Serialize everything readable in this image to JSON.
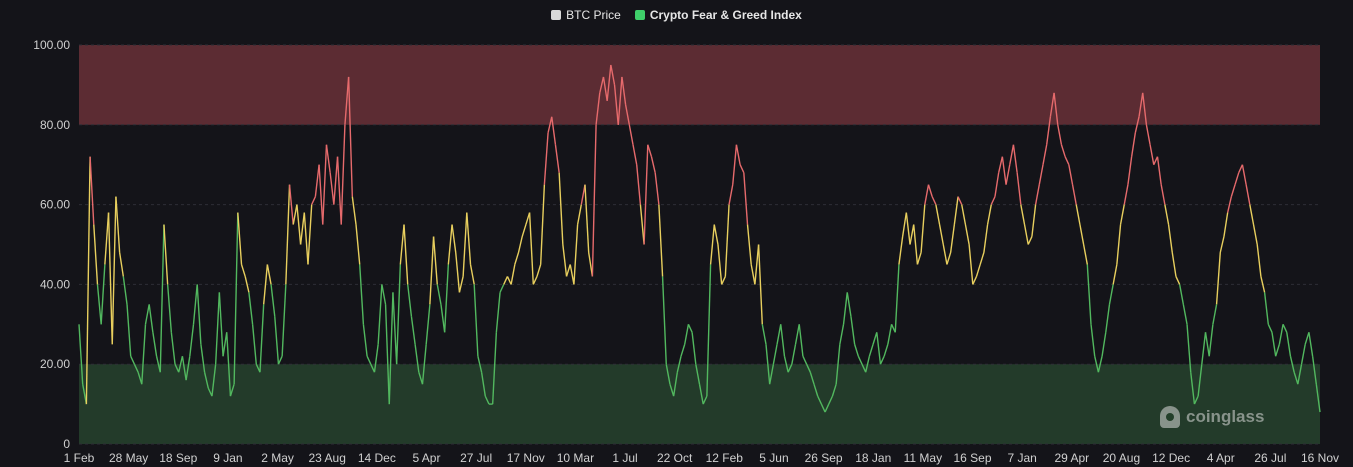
{
  "legend": {
    "btc_label": "BTC Price",
    "fng_label": "Crypto Fear & Greed Index",
    "btc_color": "#d9d9d9",
    "fng_color": "#3fcf6a"
  },
  "watermark": {
    "text": "coinglass"
  },
  "colors": {
    "background": "#141419",
    "extreme_greed_zone": "#5c2c33",
    "extreme_fear_zone": "#233b2a",
    "line_red": "#e66a6c",
    "line_yellow": "#e8cf5e",
    "line_green": "#52b85f"
  },
  "chart_data": {
    "type": "line",
    "title": "",
    "xlabel": "",
    "ylabel": "",
    "ylim": [
      0,
      100
    ],
    "y_ticks": [
      "0",
      "20.00",
      "40.00",
      "60.00",
      "80.00",
      "100.00"
    ],
    "x_ticks": [
      "1 Feb",
      "28 May",
      "18 Sep",
      "9 Jan",
      "2 May",
      "23 Aug",
      "14 Dec",
      "5 Apr",
      "27 Jul",
      "17 Nov",
      "10 Mar",
      "1 Jul",
      "22 Oct",
      "12 Feb",
      "5 Jun",
      "26 Sep",
      "18 Jan",
      "11 May",
      "16 Sep",
      "7 Jan",
      "29 Apr",
      "20 Aug",
      "12 Dec",
      "4 Apr",
      "26 Jul",
      "16 Nov"
    ],
    "zones": [
      {
        "from": 80,
        "to": 100,
        "label": "extreme greed"
      },
      {
        "from": 0,
        "to": 20,
        "label": "extreme fear"
      }
    ],
    "series": [
      {
        "name": "Crypto Fear & Greed Index",
        "values": [
          30,
          15,
          10,
          72,
          55,
          40,
          30,
          45,
          58,
          25,
          62,
          48,
          42,
          35,
          22,
          20,
          18,
          15,
          30,
          35,
          28,
          22,
          18,
          55,
          40,
          28,
          20,
          18,
          22,
          16,
          22,
          30,
          40,
          25,
          18,
          14,
          12,
          20,
          38,
          22,
          28,
          12,
          15,
          58,
          45,
          42,
          38,
          30,
          20,
          18,
          35,
          45,
          40,
          32,
          20,
          22,
          40,
          65,
          55,
          60,
          50,
          58,
          45,
          60,
          62,
          70,
          55,
          75,
          68,
          60,
          72,
          55,
          80,
          92,
          62,
          55,
          45,
          30,
          22,
          20,
          18,
          25,
          40,
          35,
          10,
          38,
          20,
          45,
          55,
          40,
          32,
          25,
          18,
          15,
          25,
          35,
          52,
          40,
          35,
          28,
          45,
          55,
          48,
          38,
          42,
          58,
          45,
          40,
          22,
          18,
          12,
          10,
          10,
          28,
          38,
          40,
          42,
          40,
          45,
          48,
          52,
          55,
          58,
          40,
          42,
          45,
          65,
          78,
          82,
          75,
          68,
          50,
          42,
          45,
          40,
          55,
          60,
          65,
          48,
          42,
          80,
          88,
          92,
          86,
          95,
          90,
          80,
          92,
          85,
          80,
          75,
          70,
          60,
          50,
          75,
          72,
          68,
          60,
          42,
          20,
          15,
          12,
          18,
          22,
          25,
          30,
          28,
          20,
          15,
          10,
          12,
          45,
          55,
          50,
          40,
          42,
          60,
          65,
          75,
          70,
          68,
          55,
          45,
          40,
          50,
          30,
          25,
          15,
          20,
          25,
          30,
          22,
          18,
          20,
          25,
          30,
          22,
          20,
          18,
          15,
          12,
          10,
          8,
          10,
          12,
          15,
          25,
          30,
          38,
          32,
          25,
          22,
          20,
          18,
          22,
          25,
          28,
          20,
          22,
          25,
          30,
          28,
          45,
          52,
          58,
          50,
          55,
          45,
          48,
          60,
          65,
          62,
          60,
          55,
          50,
          45,
          48,
          55,
          62,
          60,
          55,
          50,
          40,
          42,
          45,
          48,
          55,
          60,
          62,
          68,
          72,
          65,
          70,
          75,
          68,
          60,
          55,
          50,
          52,
          60,
          65,
          70,
          75,
          82,
          88,
          80,
          75,
          72,
          70,
          65,
          60,
          55,
          50,
          45,
          30,
          22,
          18,
          22,
          28,
          35,
          40,
          45,
          55,
          60,
          65,
          72,
          78,
          82,
          88,
          80,
          75,
          70,
          72,
          65,
          60,
          55,
          48,
          42,
          40,
          35,
          30,
          18,
          10,
          12,
          20,
          28,
          22,
          30,
          35,
          48,
          52,
          58,
          62,
          65,
          68,
          70,
          65,
          60,
          55,
          50,
          42,
          38,
          30,
          28,
          22,
          25,
          30,
          28,
          22,
          18,
          15,
          20,
          25,
          28,
          22,
          15,
          8
        ]
      }
    ]
  }
}
